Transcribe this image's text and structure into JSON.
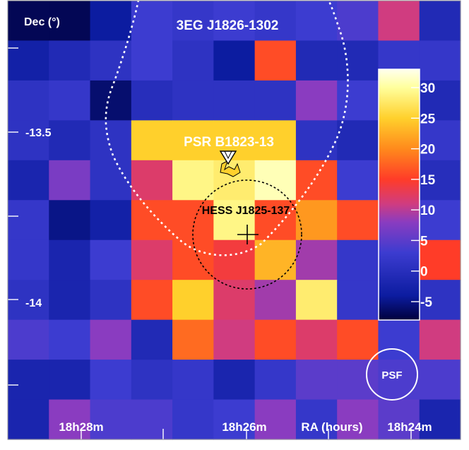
{
  "chart_data": {
    "type": "heatmap",
    "title": "3EG J1826-1302",
    "xlabel": "RA (hours)",
    "ylabel": "Dec (°)",
    "x_ticks": [
      "18h28m",
      "18h26m",
      "18h24m"
    ],
    "y_ticks": [
      "-13.5",
      "-14"
    ],
    "colorbar": {
      "range": [
        -8,
        33
      ],
      "ticks": [
        "30",
        "25",
        "20",
        "15",
        "10",
        "5",
        "0",
        "-5"
      ],
      "tick_values": [
        30,
        25,
        20,
        15,
        10,
        5,
        0,
        -5
      ],
      "colors": [
        "#00003c",
        "#0c1ca0",
        "#3c3cd0",
        "#8a3cc0",
        "#d03c80",
        "#ff3c28",
        "#ff8a1c",
        "#ffd02c",
        "#ffff9c",
        "#ffffee"
      ],
      "color_stops": [
        -8,
        -4,
        3,
        8,
        11,
        15,
        20,
        25,
        30,
        33
      ]
    },
    "grid_rows": 11,
    "grid_cols": 11,
    "values": [
      [
        -7,
        -7,
        -4,
        3,
        2,
        3,
        2,
        3,
        4,
        11,
        -1
      ],
      [
        -3,
        -1,
        1,
        3,
        1,
        -4,
        16,
        -1,
        -1,
        2,
        2
      ],
      [
        1,
        2,
        -6,
        0,
        1,
        1,
        1,
        8,
        3,
        1,
        -1
      ],
      [
        1,
        -1,
        1,
        25,
        25,
        25,
        25,
        1,
        -1,
        1,
        2
      ],
      [
        -2,
        7,
        1,
        12,
        29,
        28,
        31,
        16,
        3,
        -1,
        0
      ],
      [
        2,
        -5,
        -3,
        16,
        16,
        29,
        16,
        21,
        16,
        1,
        3
      ],
      [
        2,
        -2,
        3,
        12,
        16,
        14,
        23,
        9,
        2,
        0,
        15
      ],
      [
        1,
        -2,
        1,
        16,
        25,
        12,
        9,
        28,
        2,
        1,
        1
      ],
      [
        4,
        3,
        8,
        -1,
        18,
        11,
        16,
        12,
        16,
        3,
        11
      ],
      [
        -2,
        -2,
        3,
        1,
        2,
        -2,
        2,
        5,
        5,
        4,
        4
      ],
      [
        -2,
        8,
        4,
        4,
        2,
        3,
        8,
        2,
        8,
        5,
        -2
      ]
    ],
    "annotations": [
      {
        "label": "PSR B1823-13",
        "kind": "pulsar-triangle"
      },
      {
        "label": "HESS J1825-137",
        "kind": "cross-with-dashed-circle"
      },
      {
        "label": "PSF",
        "kind": "circle"
      }
    ]
  }
}
